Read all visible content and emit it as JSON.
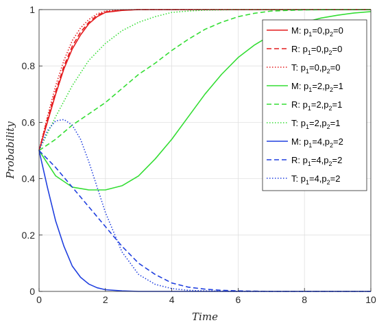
{
  "chart_data": {
    "type": "line",
    "xlabel": "Time",
    "ylabel": "Probability",
    "xlim": [
      0,
      10
    ],
    "ylim": [
      0,
      1
    ],
    "xticks": [
      "0",
      "2",
      "4",
      "6",
      "8",
      "10"
    ],
    "yticks": [
      "0",
      "0.2",
      "0.4",
      "0.6",
      "0.8",
      "1"
    ],
    "grid": true,
    "legend_position": "top-right",
    "series": [
      {
        "prefix": "M",
        "p1": "0",
        "p2": "0",
        "color": "#e41a1c",
        "dash": "solid",
        "x": [
          0,
          0.25,
          0.5,
          0.75,
          1,
          1.25,
          1.5,
          1.75,
          2,
          2.5,
          3,
          4,
          6,
          10
        ],
        "y": [
          0.5,
          0.6,
          0.7,
          0.79,
          0.86,
          0.91,
          0.95,
          0.975,
          0.99,
          0.997,
          1,
          1,
          1,
          1
        ]
      },
      {
        "prefix": "R",
        "p1": "0",
        "p2": "0",
        "color": "#e41a1c",
        "dash": "dashed",
        "x": [
          0,
          0.25,
          0.5,
          0.75,
          1,
          1.25,
          1.5,
          1.75,
          2,
          2.5,
          3,
          4,
          6,
          10
        ],
        "y": [
          0.5,
          0.61,
          0.71,
          0.8,
          0.87,
          0.92,
          0.955,
          0.98,
          0.992,
          0.998,
          1,
          1,
          1,
          1
        ]
      },
      {
        "prefix": "T",
        "p1": "0",
        "p2": "0",
        "color": "#e41a1c",
        "dash": "dotted",
        "x": [
          0,
          0.25,
          0.5,
          0.75,
          1,
          1.25,
          1.5,
          1.75,
          2,
          2.5,
          3,
          4,
          6,
          10
        ],
        "y": [
          0.5,
          0.62,
          0.73,
          0.82,
          0.89,
          0.935,
          0.965,
          0.985,
          0.995,
          0.999,
          1,
          1,
          1,
          1
        ]
      },
      {
        "prefix": "M",
        "p1": "2",
        "p2": "1",
        "color": "#33dd33",
        "dash": "solid",
        "x": [
          0,
          0.5,
          1,
          1.5,
          2,
          2.5,
          3,
          3.5,
          4,
          4.5,
          5,
          5.5,
          6,
          6.5,
          7,
          7.5,
          8,
          8.5,
          9,
          9.5,
          10
        ],
        "y": [
          0.5,
          0.41,
          0.37,
          0.36,
          0.36,
          0.375,
          0.41,
          0.47,
          0.54,
          0.62,
          0.7,
          0.77,
          0.83,
          0.875,
          0.91,
          0.935,
          0.955,
          0.97,
          0.98,
          0.988,
          0.993
        ]
      },
      {
        "prefix": "R",
        "p1": "2",
        "p2": "1",
        "color": "#33dd33",
        "dash": "dashed",
        "x": [
          0,
          0.5,
          1,
          1.5,
          2,
          2.5,
          3,
          3.5,
          4,
          4.5,
          5,
          5.5,
          6,
          6.5,
          7,
          8,
          9,
          10
        ],
        "y": [
          0.5,
          0.54,
          0.59,
          0.63,
          0.67,
          0.72,
          0.77,
          0.81,
          0.855,
          0.895,
          0.93,
          0.955,
          0.975,
          0.987,
          0.995,
          0.999,
          1,
          1
        ]
      },
      {
        "prefix": "T",
        "p1": "2",
        "p2": "1",
        "color": "#33dd33",
        "dash": "dotted",
        "x": [
          0,
          0.5,
          1,
          1.5,
          2,
          2.5,
          3,
          3.5,
          4,
          4.5,
          5,
          6,
          8,
          10
        ],
        "y": [
          0.5,
          0.62,
          0.73,
          0.82,
          0.88,
          0.925,
          0.955,
          0.975,
          0.99,
          0.995,
          0.998,
          1,
          1,
          1
        ]
      },
      {
        "prefix": "M",
        "p1": "4",
        "p2": "2",
        "color": "#1f3fdf",
        "dash": "solid",
        "x": [
          0,
          0.25,
          0.5,
          0.75,
          1,
          1.25,
          1.5,
          1.75,
          2,
          2.5,
          3,
          4,
          6,
          10
        ],
        "y": [
          0.5,
          0.37,
          0.25,
          0.16,
          0.09,
          0.05,
          0.026,
          0.013,
          0.006,
          0.002,
          0,
          0,
          0,
          0
        ]
      },
      {
        "prefix": "R",
        "p1": "4",
        "p2": "2",
        "color": "#1f3fdf",
        "dash": "dashed",
        "x": [
          0,
          0.5,
          1,
          1.5,
          2,
          2.5,
          3,
          3.5,
          4,
          4.5,
          5,
          5.5,
          6,
          7,
          8,
          10
        ],
        "y": [
          0.5,
          0.44,
          0.37,
          0.3,
          0.23,
          0.16,
          0.1,
          0.06,
          0.03,
          0.015,
          0.008,
          0.004,
          0.002,
          0,
          0,
          0
        ]
      },
      {
        "prefix": "T",
        "p1": "4",
        "p2": "2",
        "color": "#1f3fdf",
        "dash": "dotted",
        "x": [
          0,
          0.25,
          0.5,
          0.75,
          1,
          1.25,
          1.5,
          1.75,
          2,
          2.5,
          3,
          3.5,
          4,
          4.5,
          5,
          6,
          8,
          10
        ],
        "y": [
          0.5,
          0.57,
          0.605,
          0.61,
          0.59,
          0.54,
          0.46,
          0.37,
          0.28,
          0.14,
          0.06,
          0.025,
          0.01,
          0.004,
          0.002,
          0,
          0,
          0
        ]
      }
    ]
  }
}
